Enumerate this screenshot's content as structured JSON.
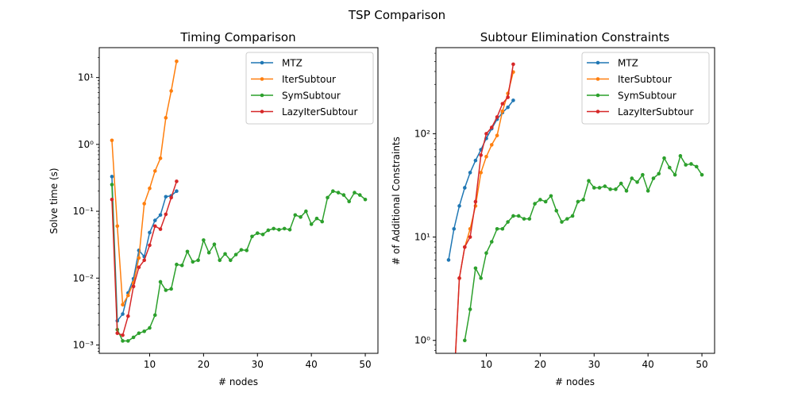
{
  "figure": {
    "suptitle": "TSP Comparison"
  },
  "colors": {
    "MTZ": "#1f77b4",
    "IterSubtour": "#ff7f0e",
    "SymSubtour": "#2ca02c",
    "LazyIterSubtour": "#d62728"
  },
  "chart_data": [
    {
      "type": "line",
      "title": "Timing Comparison",
      "xlabel": "# nodes",
      "ylabel": "Solve time (s)",
      "yscale": "log",
      "xlim": [
        0.65,
        52.35
      ],
      "ylim": [
        0.00075,
        28
      ],
      "xticks": [
        10,
        20,
        30,
        40,
        50
      ],
      "xtick_labels": [
        "10",
        "20",
        "30",
        "40",
        "50"
      ],
      "yticks": [
        0.001,
        0.01,
        0.1,
        1,
        10
      ],
      "ytick_labels": [
        "10⁻³",
        "10⁻²",
        "10⁻¹",
        "10⁰",
        "10¹"
      ],
      "legend_position": "upper right",
      "series": [
        {
          "name": "MTZ",
          "x": [
            3,
            4,
            5,
            6,
            7,
            8,
            9,
            10,
            11,
            12,
            13,
            14,
            15
          ],
          "y": [
            0.33,
            0.0023,
            0.0029,
            0.006,
            0.0098,
            0.026,
            0.021,
            0.048,
            0.073,
            0.088,
            0.165,
            0.17,
            0.2
          ]
        },
        {
          "name": "IterSubtour",
          "x": [
            3,
            4,
            5,
            6,
            7,
            8,
            9,
            10,
            11,
            12,
            13,
            14,
            15
          ],
          "y": [
            1.15,
            0.06,
            0.004,
            0.0055,
            0.0085,
            0.02,
            0.13,
            0.22,
            0.4,
            0.62,
            2.5,
            6.3,
            17.5
          ]
        },
        {
          "name": "SymSubtour",
          "x": [
            3,
            4,
            5,
            6,
            7,
            8,
            9,
            10,
            11,
            12,
            13,
            14,
            15,
            16,
            17,
            18,
            19,
            20,
            21,
            22,
            23,
            24,
            25,
            26,
            27,
            28,
            29,
            30,
            31,
            32,
            33,
            34,
            35,
            36,
            37,
            38,
            39,
            40,
            41,
            42,
            43,
            44,
            45,
            46,
            47,
            48,
            49,
            50
          ],
          "y": [
            0.25,
            0.0017,
            0.00115,
            0.00115,
            0.0013,
            0.0015,
            0.0016,
            0.0018,
            0.0028,
            0.0088,
            0.0066,
            0.0069,
            0.016,
            0.0155,
            0.025,
            0.0175,
            0.0185,
            0.037,
            0.024,
            0.032,
            0.0185,
            0.023,
            0.0185,
            0.0225,
            0.0265,
            0.026,
            0.042,
            0.047,
            0.045,
            0.052,
            0.055,
            0.053,
            0.055,
            0.053,
            0.088,
            0.082,
            0.1,
            0.064,
            0.078,
            0.07,
            0.16,
            0.2,
            0.19,
            0.175,
            0.14,
            0.19,
            0.175,
            0.15
          ]
        },
        {
          "name": "LazyIterSubtour",
          "x": [
            3,
            4,
            5,
            6,
            7,
            8,
            9,
            10,
            11,
            12,
            13,
            14,
            15
          ],
          "y": [
            0.15,
            0.0015,
            0.0014,
            0.0027,
            0.0075,
            0.0145,
            0.0185,
            0.031,
            0.06,
            0.054,
            0.09,
            0.16,
            0.28
          ]
        }
      ]
    },
    {
      "type": "line",
      "title": "Subtour Elimination Constraints",
      "xlabel": "# nodes",
      "ylabel": "# of Additional Constraints",
      "yscale": "log",
      "xlim": [
        0.65,
        52.35
      ],
      "ylim": [
        0.75,
        680
      ],
      "xticks": [
        10,
        20,
        30,
        40,
        50
      ],
      "xtick_labels": [
        "10",
        "20",
        "30",
        "40",
        "50"
      ],
      "yticks": [
        1,
        10,
        100
      ],
      "ytick_labels": [
        "10⁰",
        "10¹",
        "10²"
      ],
      "legend_position": "upper right",
      "series": [
        {
          "name": "MTZ",
          "x": [
            3,
            4,
            5,
            6,
            7,
            8,
            9,
            10,
            11,
            12,
            13,
            14,
            15
          ],
          "y": [
            6,
            12,
            20,
            30,
            42,
            55,
            70,
            90,
            112,
            138,
            160,
            180,
            210
          ]
        },
        {
          "name": "IterSubtour",
          "x": [
            4,
            5,
            6,
            7,
            8,
            9,
            10,
            11,
            12,
            13,
            14,
            15
          ],
          "y": [
            0,
            4,
            8,
            12,
            20,
            42,
            60,
            78,
            96,
            165,
            245,
            395
          ]
        },
        {
          "name": "SymSubtour",
          "x": [
            6,
            7,
            8,
            9,
            10,
            11,
            12,
            13,
            14,
            15,
            16,
            17,
            18,
            19,
            20,
            21,
            22,
            23,
            24,
            25,
            26,
            27,
            28,
            29,
            30,
            31,
            32,
            33,
            34,
            35,
            36,
            37,
            38,
            39,
            40,
            41,
            42,
            43,
            44,
            45,
            46,
            47,
            48,
            49,
            50
          ],
          "y": [
            1,
            2,
            5,
            4,
            7,
            9,
            12,
            12,
            14,
            16,
            16,
            15,
            15,
            21,
            23,
            22,
            25,
            18,
            14,
            15,
            16,
            22,
            23,
            35,
            30,
            30,
            31,
            29,
            29,
            33,
            28,
            37,
            34,
            40,
            28,
            37,
            41,
            58,
            47,
            40,
            61,
            50,
            51,
            48,
            40
          ]
        },
        {
          "name": "LazyIterSubtour",
          "x": [
            4,
            5,
            6,
            7,
            8,
            9,
            10,
            11,
            12,
            13,
            14,
            15
          ],
          "y": [
            0,
            4,
            8,
            10,
            22,
            62,
            100,
            115,
            145,
            195,
            225,
            470
          ]
        }
      ]
    }
  ]
}
